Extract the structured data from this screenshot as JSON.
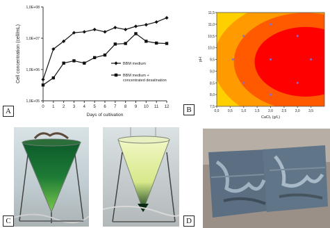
{
  "figure": {
    "panels": {
      "a": {
        "label": "A"
      },
      "b": {
        "label": "B"
      },
      "c": {
        "label": "C"
      },
      "d": {
        "label": "D"
      }
    }
  },
  "chart_data": [
    {
      "type": "line",
      "ylabel": "Cell concentration (cell/mL)",
      "xlabel": "Days of cultivation",
      "x": [
        0,
        1,
        2,
        3,
        4,
        5,
        6,
        7,
        8,
        9,
        10,
        11,
        12
      ],
      "yscale": "log",
      "ylim": [
        100000,
        100000000
      ],
      "yticks": [
        "1,0E+05",
        "1,0E+06",
        "1,0E+07",
        "1,0E+08"
      ],
      "grid": false,
      "legend_position": "right",
      "series": [
        {
          "name": "BBM medium",
          "marker": "diamond",
          "values": [
            480000,
            4500000,
            8000000,
            15000000,
            16000000,
            19000000,
            16000000,
            22000000,
            19000000,
            24000000,
            27000000,
            33000000,
            45000000
          ]
        },
        {
          "name": "BBM medium + concentrated desalination",
          "marker": "square",
          "values": [
            320000,
            540000,
            1600000,
            1900000,
            1600000,
            2400000,
            2900000,
            6500000,
            6800000,
            14000000,
            8000000,
            7000000,
            6800000
          ]
        }
      ]
    },
    {
      "type": "heatmap",
      "xlabel": "CaCl₂ (g/L)",
      "ylabel": "pH",
      "xlim": [
        0.0,
        4.0
      ],
      "ylim": [
        7.5,
        11.5
      ],
      "xticks": [
        "0,0",
        "0,5",
        "1,0",
        "1,5",
        "2,0",
        "2,5",
        "3,0",
        "3,5"
      ],
      "yticks": [
        "7,5",
        "8,0",
        "8,5",
        "9,0",
        "9,5",
        "10,0",
        "10,5",
        "11,0",
        "11,5"
      ],
      "colors": [
        "#ff0000",
        "#ff5a00",
        "#ff9a00",
        "#ffd000",
        "#dff200",
        "#7edc00",
        "#22b400"
      ],
      "points": [
        {
          "x": 1.0,
          "y": 10.5
        },
        {
          "x": 2.0,
          "y": 11.0
        },
        {
          "x": 3.0,
          "y": 10.5
        },
        {
          "x": 0.6,
          "y": 9.5
        },
        {
          "x": 2.0,
          "y": 9.5
        },
        {
          "x": 3.5,
          "y": 9.5
        },
        {
          "x": 1.0,
          "y": 8.5
        },
        {
          "x": 2.0,
          "y": 8.0
        },
        {
          "x": 3.0,
          "y": 8.5
        }
      ]
    }
  ]
}
